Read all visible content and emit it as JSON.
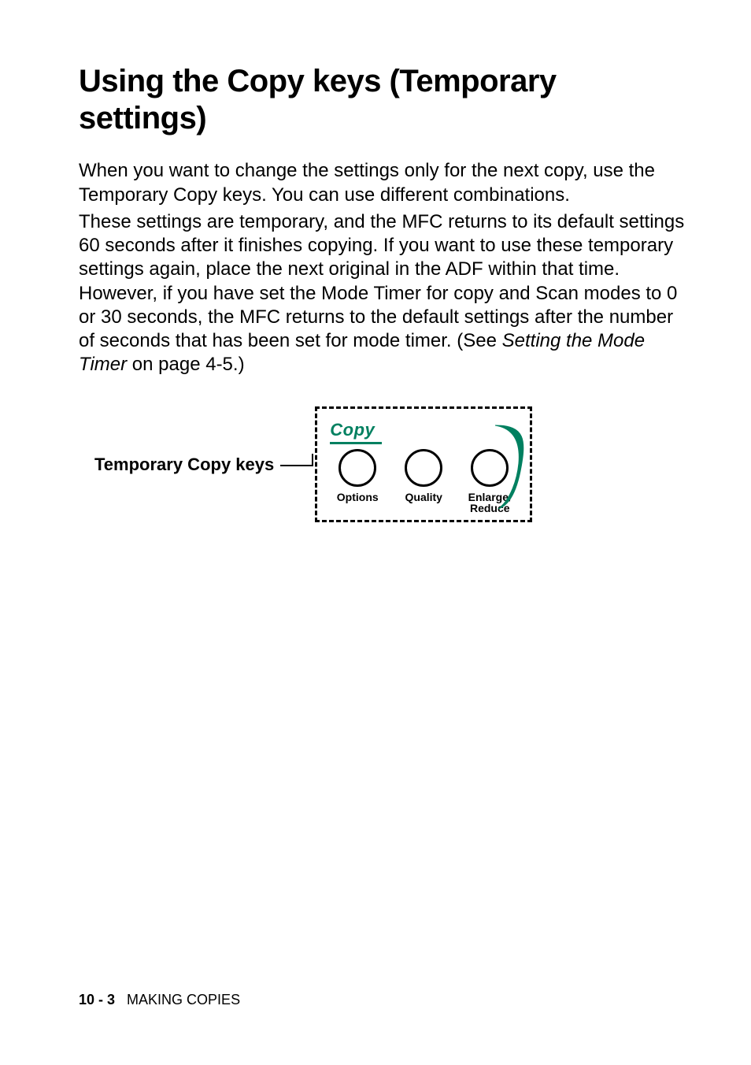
{
  "heading": "Using the Copy keys (Temporary settings)",
  "para1": "When you want to change the settings only for the next copy, use the Temporary Copy keys. You can use different combinations.",
  "para2_a": "These settings are temporary, and the MFC returns to its default settings 60 seconds after it finishes copying. If you want to use these temporary settings again, place the next original in the ADF within that time. However, if you have set the Mode Timer for copy and Scan modes to 0 or 30 seconds, the MFC returns to the default settings after the number of seconds that has been set for mode timer. (See ",
  "para2_ital": "Setting the Mode Timer",
  "para2_b": " on page 4-5.)",
  "callout": "Temporary Copy keys",
  "panel": {
    "title": "Copy",
    "title_color": "#008060",
    "buttons": [
      {
        "label": "Options"
      },
      {
        "label": "Quality"
      },
      {
        "label": "Enlarge/\nReduce"
      }
    ],
    "swoosh_color": "#008060"
  },
  "footer": {
    "page_num": "10 - 3",
    "section": "MAKING COPIES"
  },
  "colors": {
    "text": "#000000",
    "background": "#ffffff"
  }
}
